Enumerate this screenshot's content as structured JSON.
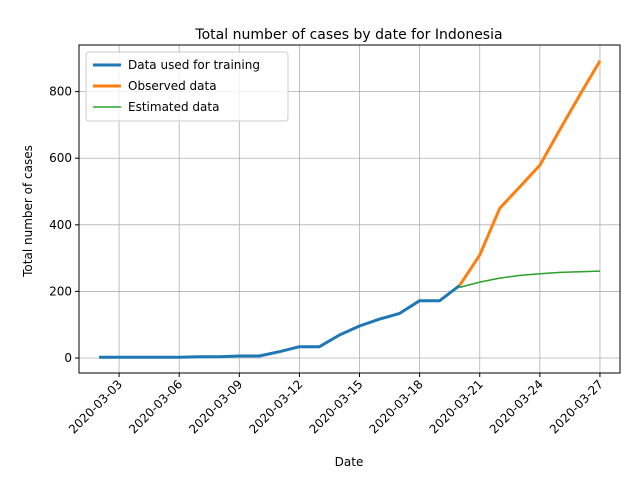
{
  "chart_data": {
    "type": "line",
    "title": "Total number of cases by date for Indonesia",
    "xlabel": "Date",
    "ylabel": "Total number of cases",
    "x_ticks": [
      "2020-03-03",
      "2020-03-06",
      "2020-03-09",
      "2020-03-12",
      "2020-03-15",
      "2020-03-18",
      "2020-03-21",
      "2020-03-24",
      "2020-03-27"
    ],
    "y_ticks": [
      0,
      200,
      400,
      600,
      800
    ],
    "xlim": [
      "2020-03-01",
      "2020-03-28"
    ],
    "ylim": [
      -45,
      940
    ],
    "grid": true,
    "legend_position": "top-left",
    "series": [
      {
        "name": "Data used for training",
        "color": "#1f77b4",
        "line_width": "thick",
        "points": [
          [
            "2020-03-02",
            2
          ],
          [
            "2020-03-03",
            2
          ],
          [
            "2020-03-04",
            2
          ],
          [
            "2020-03-05",
            2
          ],
          [
            "2020-03-06",
            2
          ],
          [
            "2020-03-07",
            4
          ],
          [
            "2020-03-08",
            4
          ],
          [
            "2020-03-09",
            6
          ],
          [
            "2020-03-10",
            6
          ],
          [
            "2020-03-11",
            19
          ],
          [
            "2020-03-12",
            34
          ],
          [
            "2020-03-13",
            34
          ],
          [
            "2020-03-14",
            69
          ],
          [
            "2020-03-15",
            96
          ],
          [
            "2020-03-16",
            117
          ],
          [
            "2020-03-17",
            134
          ],
          [
            "2020-03-18",
            172
          ],
          [
            "2020-03-19",
            172
          ],
          [
            "2020-03-20",
            218
          ]
        ]
      },
      {
        "name": "Observed data",
        "color": "#ff7f0e",
        "line_width": "thick",
        "points": [
          [
            "2020-03-20",
            218
          ],
          [
            "2020-03-21",
            309
          ],
          [
            "2020-03-22",
            450
          ],
          [
            "2020-03-23",
            514
          ],
          [
            "2020-03-24",
            579
          ],
          [
            "2020-03-25",
            686
          ],
          [
            "2020-03-26",
            790
          ],
          [
            "2020-03-27",
            893
          ]
        ]
      },
      {
        "name": "Estimated data",
        "color": "#2ca02c",
        "line_width": "thin",
        "points": [
          [
            "2020-03-20",
            212
          ],
          [
            "2020-03-21",
            228
          ],
          [
            "2020-03-22",
            240
          ],
          [
            "2020-03-23",
            248
          ],
          [
            "2020-03-24",
            253
          ],
          [
            "2020-03-25",
            257
          ],
          [
            "2020-03-26",
            259
          ],
          [
            "2020-03-27",
            261
          ]
        ]
      }
    ]
  }
}
